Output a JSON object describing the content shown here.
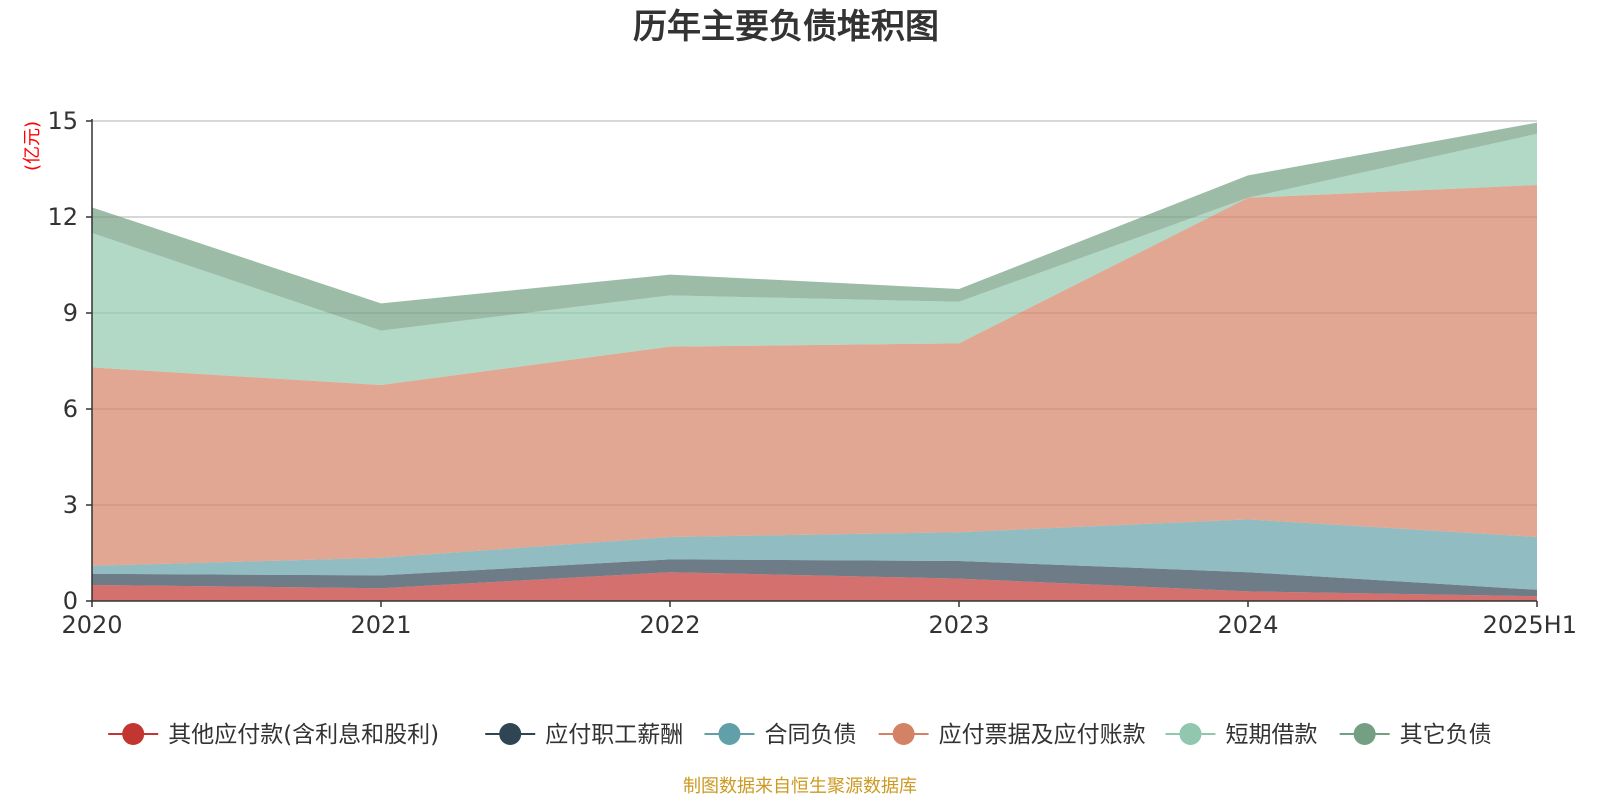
{
  "chart_data": {
    "type": "area",
    "stacked": true,
    "title": "历年主要负债堆积图",
    "unit_label": "(亿元)",
    "x": [
      "2020",
      "2021",
      "2022",
      "2023",
      "2024",
      "2025H1"
    ],
    "ylim": [
      0,
      15
    ],
    "yticks": [
      "0",
      "3",
      "6",
      "9",
      "12",
      "15"
    ],
    "grid": true,
    "legend_position": "bottom",
    "series": [
      {
        "name": "其他应付款(含利息和股利)",
        "color": "#c23531",
        "values": [
          0.5,
          0.4,
          0.9,
          0.7,
          0.3,
          0.15
        ]
      },
      {
        "name": "应付职工薪酬",
        "color": "#2f4554",
        "values": [
          0.35,
          0.4,
          0.4,
          0.55,
          0.6,
          0.2
        ]
      },
      {
        "name": "合同负债",
        "color": "#61a0a8",
        "values": [
          0.25,
          0.55,
          0.7,
          0.9,
          1.65,
          1.65
        ]
      },
      {
        "name": "应付票据及应付账款",
        "color": "#d48265",
        "values": [
          6.2,
          5.4,
          5.95,
          5.9,
          10.05,
          11.0
        ]
      },
      {
        "name": "短期借款",
        "color": "#91c7ae",
        "values": [
          4.2,
          1.7,
          1.6,
          1.3,
          0.0,
          1.6
        ]
      },
      {
        "name": "其它负债",
        "color": "#749f83",
        "values": [
          0.8,
          0.85,
          0.65,
          0.4,
          0.7,
          0.35
        ]
      }
    ],
    "source": "制图数据来自恒生聚源数据库"
  }
}
